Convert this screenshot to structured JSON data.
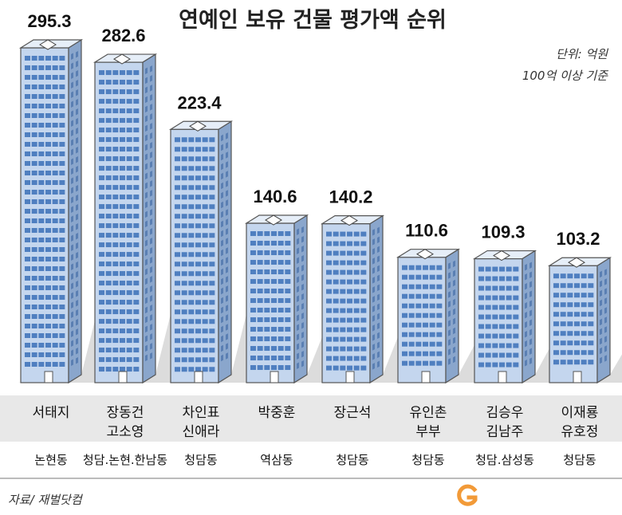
{
  "chart_data": {
    "type": "bar",
    "title": "연예인 보유 건물 평가액 순위",
    "unit_note": "단위: 억원",
    "criteria_note": "100억 이상 기준",
    "source": "자료/ 재벌닷컴",
    "categories": [
      {
        "name_lines": [
          "서태지"
        ],
        "area": "논현동"
      },
      {
        "name_lines": [
          "장동건",
          "고소영"
        ],
        "area": "청담.논현.한남동"
      },
      {
        "name_lines": [
          "차인표",
          "신애라"
        ],
        "area": "청담동"
      },
      {
        "name_lines": [
          "박중훈"
        ],
        "area": "역삼동"
      },
      {
        "name_lines": [
          "장근석"
        ],
        "area": "청담동"
      },
      {
        "name_lines": [
          "유인촌",
          "부부"
        ],
        "area": "청담동"
      },
      {
        "name_lines": [
          "김승우",
          "김남주"
        ],
        "area": "청담.삼성동"
      },
      {
        "name_lines": [
          "이재룡",
          "유호정"
        ],
        "area": "청담동"
      }
    ],
    "values": [
      295.3,
      282.6,
      223.4,
      140.6,
      140.2,
      110.6,
      109.3,
      103.2
    ],
    "value_labels": [
      "295.3",
      "282.6",
      "223.4",
      "140.6",
      "140.2",
      "110.6",
      "109.3",
      "103.2"
    ]
  },
  "colors": {
    "building_front": "#c4d6ee",
    "building_side": "#8aa6cc",
    "window": "#4f7fc0",
    "shadow": "#dcdcdc",
    "band": "#e8e8e8",
    "logo": "#f29a38"
  },
  "logo_icon": "g-logo-icon"
}
